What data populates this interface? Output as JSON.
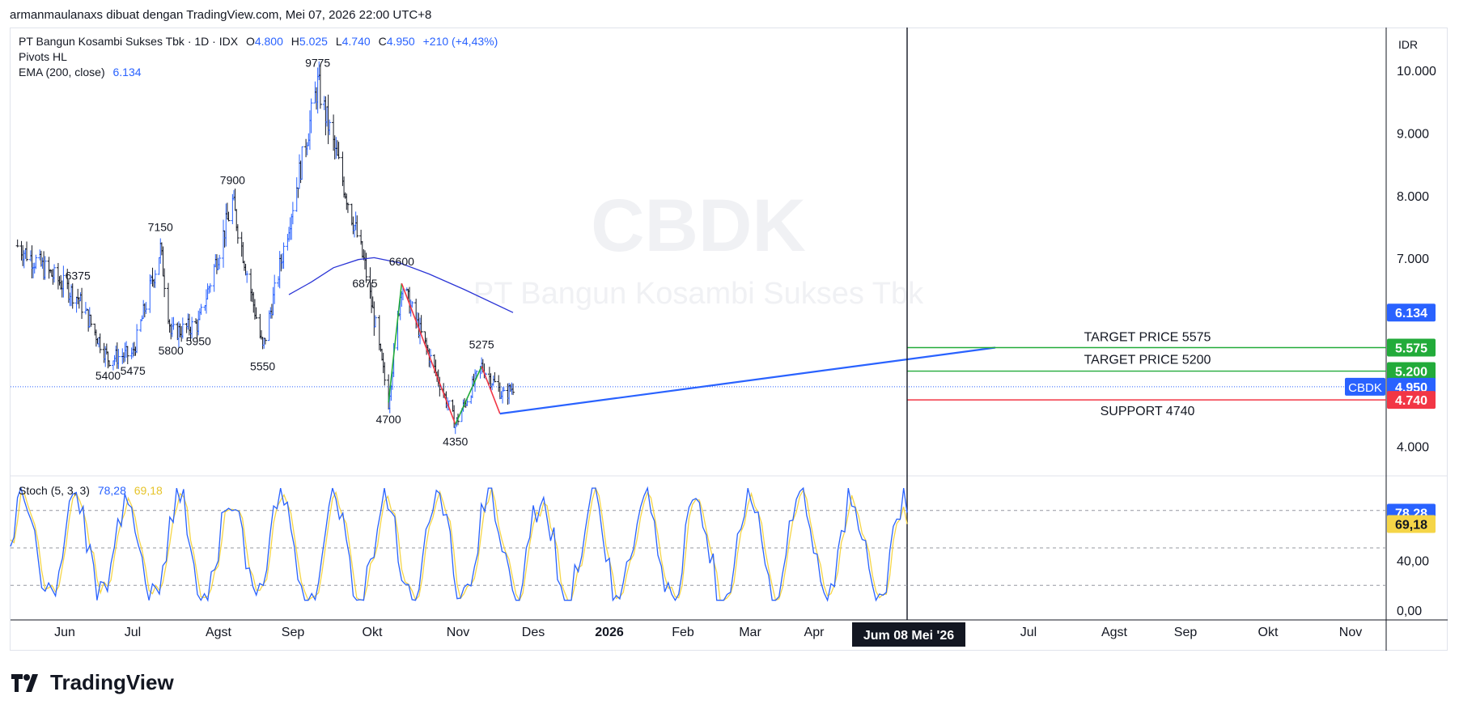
{
  "header": {
    "credit": "armanmaulanaxs dibuat dengan TradingView.com, Mei 07, 2026 22:00 UTC+8"
  },
  "legend": {
    "symbol": "PT Bangun Kosambi Sukses Tbk · 1D · IDX",
    "open_label": "O",
    "open": "4.800",
    "high_label": "H",
    "high": "5.025",
    "low_label": "L",
    "low": "4.740",
    "close_label": "C",
    "close": "4.950",
    "change": "+210 (+4,43%)",
    "pivots": "Pivots HL",
    "ema_label": "EMA (200, close)",
    "ema_value": "6.134",
    "stoch_label": "Stoch (5, 3, 3)",
    "stoch_k": "78,28",
    "stoch_d": "69,18"
  },
  "watermark": {
    "ticker": "CBDK",
    "name": "PT Bangun Kosambi Sukses Tbk"
  },
  "price_axis": {
    "currency": "IDR",
    "ticks": [
      "10.000",
      "9.000",
      "8.000",
      "7.000",
      "4.000"
    ],
    "badges": [
      {
        "label": "",
        "value": "6.134",
        "color": "#2962ff"
      },
      {
        "label": "",
        "value": "5.575",
        "color": "#22ab3a"
      },
      {
        "label": "",
        "value": "5.200",
        "color": "#22ab3a"
      },
      {
        "label": "CBDK",
        "value": "4.950",
        "color": "#2962ff"
      },
      {
        "label": "",
        "value": "4.740",
        "color": "#f23645"
      }
    ]
  },
  "stoch_axis": {
    "ticks": [
      "40,00",
      "0,00"
    ],
    "badge_k": "78,28",
    "badge_d": "69,18"
  },
  "time_axis": {
    "labels": [
      "Jun",
      "Jul",
      "Agst",
      "Sep",
      "Okt",
      "Nov",
      "Des",
      "2026",
      "Feb",
      "Mar",
      "Apr",
      "Jul",
      "Agst",
      "Sep",
      "Okt",
      "Nov"
    ],
    "cursor_label": "Jum 08 Mei '26"
  },
  "annotations": {
    "target1": "TARGET PRICE 5575",
    "target2": "TARGET PRICE 5200",
    "support": "SUPPORT 4740"
  },
  "colors": {
    "up": "#2962ff",
    "down": "#131722",
    "ema": "#2b35d6",
    "target": "#22ab3a",
    "support": "#f23645",
    "stoch_k": "#2962ff",
    "stoch_d": "#f5d547"
  },
  "chart_data": {
    "type": "ohlc",
    "title": "PT Bangun Kosambi Sukses Tbk · 1D · IDX",
    "ylabel": "IDR",
    "ylim": [
      3800,
      10300
    ],
    "pivots": [
      {
        "date": "2025-06-10",
        "value": 6375,
        "kind": "high"
      },
      {
        "date": "2025-07-03",
        "value": 5400,
        "kind": "low"
      },
      {
        "date": "2025-07-22",
        "value": 5475,
        "kind": "low"
      },
      {
        "date": "2025-08-12",
        "value": 7150,
        "kind": "high"
      },
      {
        "date": "2025-08-20",
        "value": 5800,
        "kind": "low"
      },
      {
        "date": "2025-09-10",
        "value": 5950,
        "kind": "low"
      },
      {
        "date": "2025-10-06",
        "value": 7900,
        "kind": "high"
      },
      {
        "date": "2025-10-29",
        "value": 5550,
        "kind": "low"
      },
      {
        "date": "2025-12-10",
        "value": 9775,
        "kind": "high"
      },
      {
        "date": "2026-01-15",
        "value": 6875,
        "kind": "low"
      },
      {
        "date": "2026-02-02",
        "value": 4700,
        "kind": "low"
      },
      {
        "date": "2026-02-12",
        "value": 6600,
        "kind": "high"
      },
      {
        "date": "2026-03-25",
        "value": 4350,
        "kind": "low"
      },
      {
        "date": "2026-04-14",
        "value": 5275,
        "kind": "high"
      }
    ],
    "ema200_last": 6134,
    "last_bar": {
      "date": "2026-05-08",
      "open": 4800,
      "high": 5025,
      "low": 4740,
      "close": 4950,
      "change": 210,
      "change_pct": 4.43
    },
    "levels": [
      {
        "name": "TARGET PRICE 5575",
        "value": 5575
      },
      {
        "name": "TARGET PRICE 5200",
        "value": 5200
      },
      {
        "name": "SUPPORT 4740",
        "value": 4740
      }
    ],
    "stochastic": {
      "params": "5, 3, 3",
      "k": 78.28,
      "d": 69.18,
      "ylim": [
        0,
        100
      ],
      "bands": [
        20,
        50,
        80
      ]
    }
  }
}
